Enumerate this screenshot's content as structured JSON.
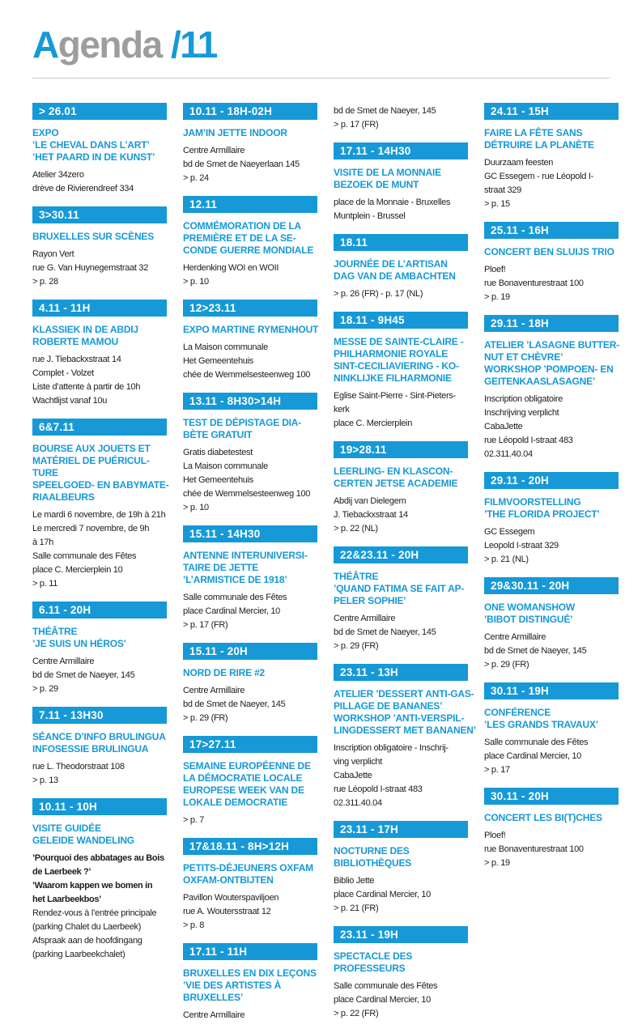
{
  "colors": {
    "accent_blue": "#1699d6",
    "title_gray": "#9d9d9c",
    "body_text": "#1d1d1b",
    "banner_text": "#ffffff"
  },
  "header": {
    "title_accent": "A",
    "title_rest": "genda ",
    "title_number": "/11"
  },
  "columns": [
    {
      "entries": [
        {
          "date": "> 26.01",
          "title": [
            "EXPO",
            "’LE CHEVAL DANS L’ART’",
            "’HET PAARD IN DE KUNST’"
          ],
          "body": [
            "Atelier 34zero",
            "drève de Rivierendreef 334"
          ]
        },
        {
          "date": "3>30.11",
          "title": [
            "BRUXELLES SUR SCÈNES"
          ],
          "body": [
            "Rayon Vert",
            "rue G. Van Huynegemstraat 32",
            "> p. 28"
          ]
        },
        {
          "date": "4.11 - 11H",
          "title": [
            "KLASSIEK IN DE ABDIJ",
            "ROBERTE MAMOU"
          ],
          "body": [
            "rue J. Tiebackxstraat 14",
            "Complet - Volzet",
            "Liste d’attente à partir de 10h",
            "Wachtlijst vanaf 10u"
          ]
        },
        {
          "date": "6&7.11",
          "title": [
            "BOURSE AUX JOUETS ET",
            "MATÉRIEL DE PUÉRICUL-",
            "TURE",
            "SPEELGOED- EN BABYMATE-",
            "RIAALBEURS"
          ],
          "body": [
            "Le mardi 6 novembre, de 19h à 21h",
            "Le mercredi 7 novembre, de 9h",
            "à 17h",
            "Salle communale des Fêtes",
            "place C. Mercierplein 10",
            "> p. 11"
          ]
        },
        {
          "date": "6.11 - 20H",
          "title": [
            "THÉÂTRE",
            "’JE SUIS UN HÉROS’"
          ],
          "body": [
            "Centre Armillaire",
            "bd de Smet de Naeyer, 145",
            "> p. 29"
          ]
        },
        {
          "date": "7.11 - 13H30",
          "title": [
            "SÉANCE D’INFO BRULINGUA",
            "INFOSESSIE BRULINGUA"
          ],
          "body": [
            "rue L. Theodorstraat 108",
            "> p. 13"
          ]
        },
        {
          "date": "10.11 - 10H",
          "title": [
            "VISITE GUIDÉE",
            "GELEIDE WANDELING"
          ],
          "body": [
            {
              "t": "’Pourquoi des abbatages au Bois",
              "b": true
            },
            {
              "t": "de Laerbeek ?’",
              "b": true
            },
            {
              "t": "’Waarom kappen we bomen in",
              "b": true
            },
            {
              "t": "het Laarbeekbos’",
              "b": true
            },
            {
              "t": "Rendez-vous à l’entrée principale"
            },
            {
              "t": "(parking Chalet du Laerbeek)"
            },
            {
              "t": "Afspraak aan de hoofdingang"
            },
            {
              "t": "(parking Laarbeekchalet)"
            }
          ]
        }
      ]
    },
    {
      "entries": [
        {
          "date": "10.11 - 18H-02H",
          "title": [
            "JAM’IN JETTE INDOOR"
          ],
          "body": [
            "Centre Armillaire",
            "bd de Smet de Naeyerlaan 145",
            "> p. 24"
          ]
        },
        {
          "date": "12.11",
          "title": [
            "COMMÉMORATION DE LA",
            "PREMIÈRE ET DE LA SE-",
            "CONDE GUERRE MONDIALE"
          ],
          "body": [
            "Herdenking WOI en WOII",
            "> p. 10"
          ]
        },
        {
          "date": "12>23.11",
          "title": [
            "EXPO MARTINE RYMENHOUT"
          ],
          "body": [
            "La Maison communale",
            "Het Gemeentehuis",
            "chée de Wemmelsesteenweg 100"
          ]
        },
        {
          "date": "13.11 - 8H30>14H",
          "title": [
            "TEST DE DÉPISTAGE DIA-",
            "BÈTE GRATUIT"
          ],
          "body": [
            "Gratis diabetestest",
            "La Maison communale",
            "Het Gemeentehuis",
            "chée de Wemmelsesteenweg 100",
            "> p. 10"
          ]
        },
        {
          "date": "15.11 - 14H30",
          "title": [
            "ANTENNE INTERUNIVERSI-",
            "TAIRE DE JETTE",
            "’L’ARMISTICE DE 1918’"
          ],
          "body": [
            "Salle communale des Fêtes",
            "place Cardinal Mercier, 10",
            "> p. 17 (FR)"
          ]
        },
        {
          "date": "15.11 - 20H",
          "title": [
            "NORD DE RIRE #2"
          ],
          "body": [
            "Centre Armillaire",
            "bd de Smet de Naeyer, 145",
            "> p. 29 (FR)"
          ]
        },
        {
          "date": "17>27.11",
          "title": [
            "SEMAINE EUROPÉENNE DE",
            "LA DÉMOCRATIE LOCALE",
            "EUROPESE WEEK VAN DE",
            "LOKALE DEMOCRATIE"
          ],
          "body": [
            "> p. 7"
          ]
        },
        {
          "date": "17&18.11 - 8H>12H",
          "title": [
            "PETITS-DÉJEUNERS OXFAM",
            "OXFAM-ONTBIJTEN"
          ],
          "body": [
            "Pavillon Wouterspaviljoen",
            "rue A. Woutersstraat 12",
            "> p. 8"
          ]
        },
        {
          "date": "17.11 - 11H",
          "title": [
            "BRUXELLES EN DIX LEÇONS",
            "’VIE DES ARTISTES À",
            "BRUXELLES’"
          ],
          "body": [
            "Centre Armillaire"
          ]
        }
      ]
    },
    {
      "entries": [
        {
          "date": null,
          "title": [],
          "body": [
            "bd de Smet de Naeyer, 145",
            "> p. 17 (FR)"
          ]
        },
        {
          "date": "17.11 - 14H30",
          "title": [
            "VISITE DE LA MONNAIE",
            "BEZOEK DE MUNT"
          ],
          "body": [
            "place de la Monnaie - Bruxelles",
            "Muntplein - Brussel"
          ]
        },
        {
          "date": "18.11",
          "title": [
            "JOURNÉE DE L’ARTISAN",
            "DAG VAN DE AMBACHTEN"
          ],
          "body": [
            "> p. 26 (FR) - p. 17 (NL)"
          ]
        },
        {
          "date": "18.11 - 9H45",
          "title": [
            "MESSE DE SAINTE-CLAIRE -",
            "PHILHARMONIE ROYALE",
            "SINT-CECILIAVIERING - KO-",
            "NINKLIJKE FILHARMONIE"
          ],
          "body": [
            "Eglise Saint-Pierre - Sint-Pieters-",
            "kerk",
            "place C. Mercierplein"
          ]
        },
        {
          "date": "19>28.11",
          "title": [
            "LEERLING- EN KLASCON-",
            "CERTEN JETSE ACADEMIE"
          ],
          "body": [
            "Abdij van Dielegem",
            "J. Tiebackxstraat 14",
            "> p. 22 (NL)"
          ]
        },
        {
          "date": "22&23.11 - 20H",
          "title": [
            "THÉÂTRE",
            "’QUAND FATIMA SE FAIT AP-",
            "PELER SOPHIE’"
          ],
          "body": [
            "Centre Armillaire",
            "bd de Smet de Naeyer, 145",
            "> p. 29 (FR)"
          ]
        },
        {
          "date": "23.11 - 13H",
          "title": [
            "ATELIER ’DESSERT ANTI-GAS-",
            "PILLAGE DE BANANES’",
            "WORKSHOP ’ANTI-VERSPIL-",
            "LINGDESSERT MET BANANEN’"
          ],
          "body": [
            "Inscription obligatoire - Inschrij-",
            "ving verplicht",
            "CabaJette",
            "rue Léopold I-straat 483",
            "02.311.40.04"
          ]
        },
        {
          "date": "23.11 - 17H",
          "title": [
            "NOCTURNE DES",
            "BIBLIOTHÈQUES"
          ],
          "body": [
            "Biblio Jette",
            "place Cardinal Mercier, 10",
            "> p. 21 (FR)"
          ]
        },
        {
          "date": "23.11 - 19H",
          "title": [
            "SPECTACLE DES",
            "PROFESSEURS"
          ],
          "body": [
            "Salle communale des Fêtes",
            "place Cardinal Mercier, 10",
            "> p. 22 (FR)"
          ]
        }
      ]
    },
    {
      "entries": [
        {
          "date": "24.11 - 15H",
          "title": [
            "FAIRE LA FÊTE SANS",
            "DÉTRUIRE LA PLANÈTE"
          ],
          "body": [
            "Duurzaam feesten",
            "GC Essegem - rue Léopold I-",
            "straat 329",
            "> p. 15"
          ]
        },
        {
          "date": "25.11 - 16H",
          "title": [
            "CONCERT BEN SLUIJS TRIO"
          ],
          "body": [
            "Ploef!",
            "rue Bonaventurestraat 100",
            "> p. 19"
          ]
        },
        {
          "date": "29.11 - 18H",
          "title": [
            "ATELIER ’LASAGNE BUTTER-",
            "NUT ET CHÈVRE’",
            "WORKSHOP ’POMPOEN- EN",
            "GEITENKAASLASAGNE’"
          ],
          "body": [
            "Inscription obligatoire",
            "Inschrijving verplicht",
            "CabaJette",
            "rue Léopold I-straat 483",
            "02.311.40.04"
          ]
        },
        {
          "date": "29.11 - 20H",
          "title": [
            "FILMVOORSTELLING",
            "’THE FLORIDA PROJECT’"
          ],
          "body": [
            "GC Essegem",
            "Leopold I-straat 329",
            "> p. 21 (NL)"
          ]
        },
        {
          "date": "29&30.11 - 20H",
          "title": [
            "ONE WOMANSHOW",
            "’BIBOT DISTINGUÉ’"
          ],
          "body": [
            "Centre Armillaire",
            "bd de Smet de Naeyer, 145",
            "> p. 29 (FR)"
          ]
        },
        {
          "date": "30.11 - 19H",
          "title": [
            "CONFÉRENCE",
            "’LES GRANDS TRAVAUX’"
          ],
          "body": [
            "Salle communale des Fêtes",
            "place Cardinal Mercier, 10",
            "> p. 17"
          ]
        },
        {
          "date": "30.11 - 20H",
          "title": [
            "CONCERT LES BI(T)CHES"
          ],
          "body": [
            "Ploef!",
            "rue Bonaventurestraat 100",
            "> p. 19"
          ]
        }
      ]
    }
  ]
}
